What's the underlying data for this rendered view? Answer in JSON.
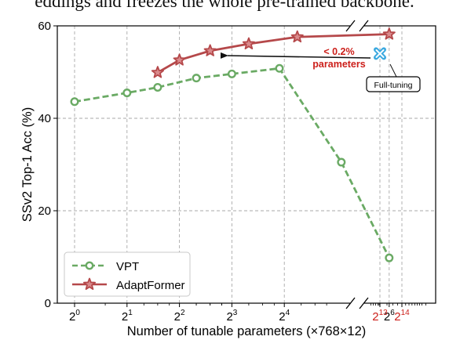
{
  "header_text": "eddings and freezes the whole pre-trained backbone.",
  "colors": {
    "vpt": "#6aaa64",
    "adaptformer": "#b5484a",
    "full_tuning": "#3ba9e0",
    "annotation_red": "#cc1f1a",
    "grid": "#a9a9a9"
  },
  "chart_data": {
    "type": "line",
    "xlabel": "Number of tunable parameters (×768×12)",
    "ylabel": "SSv2 Top-1 Acc (%)",
    "ylim": [
      0,
      60
    ],
    "yticks": [
      0,
      20,
      40,
      60
    ],
    "x_scale": "log2 with broken axis",
    "xticks_left": [
      {
        "base": "2",
        "exp": "0",
        "x": 1
      },
      {
        "base": "2",
        "exp": "1",
        "x": 2
      },
      {
        "base": "2",
        "exp": "2",
        "x": 4
      },
      {
        "base": "2",
        "exp": "3",
        "x": 8
      },
      {
        "base": "2",
        "exp": "4",
        "x": 16
      },
      {
        "base": "2",
        "exp": "6",
        "x": 64
      }
    ],
    "xticks_right": [
      {
        "base": "2",
        "exp": "13",
        "x": 8192
      },
      {
        "base": "2",
        "exp": "14",
        "x": 16384
      }
    ],
    "grid": true,
    "legend_position": "bottom-left",
    "series": [
      {
        "name": "VPT",
        "marker": "circle",
        "line": "dashed",
        "points": [
          [
            1,
            43.6
          ],
          [
            2,
            45.5
          ],
          [
            3,
            46.7
          ],
          [
            5,
            48.7
          ],
          [
            8,
            49.6
          ],
          [
            15,
            50.8
          ],
          [
            34,
            30.5
          ],
          [
            64,
            9.8
          ]
        ]
      },
      {
        "name": "AdaptFormer",
        "marker": "star",
        "line": "solid",
        "points": [
          [
            3,
            49.9
          ],
          [
            4,
            52.6
          ],
          [
            6,
            54.6
          ],
          [
            10,
            56.1
          ],
          [
            19,
            57.6
          ],
          [
            64,
            58.2
          ]
        ]
      }
    ],
    "full_tuning": {
      "label": "Full-tuning",
      "x": 8192,
      "y": 54
    },
    "annotation": {
      "line1": "< 0.2%",
      "line2": "parameters"
    }
  }
}
